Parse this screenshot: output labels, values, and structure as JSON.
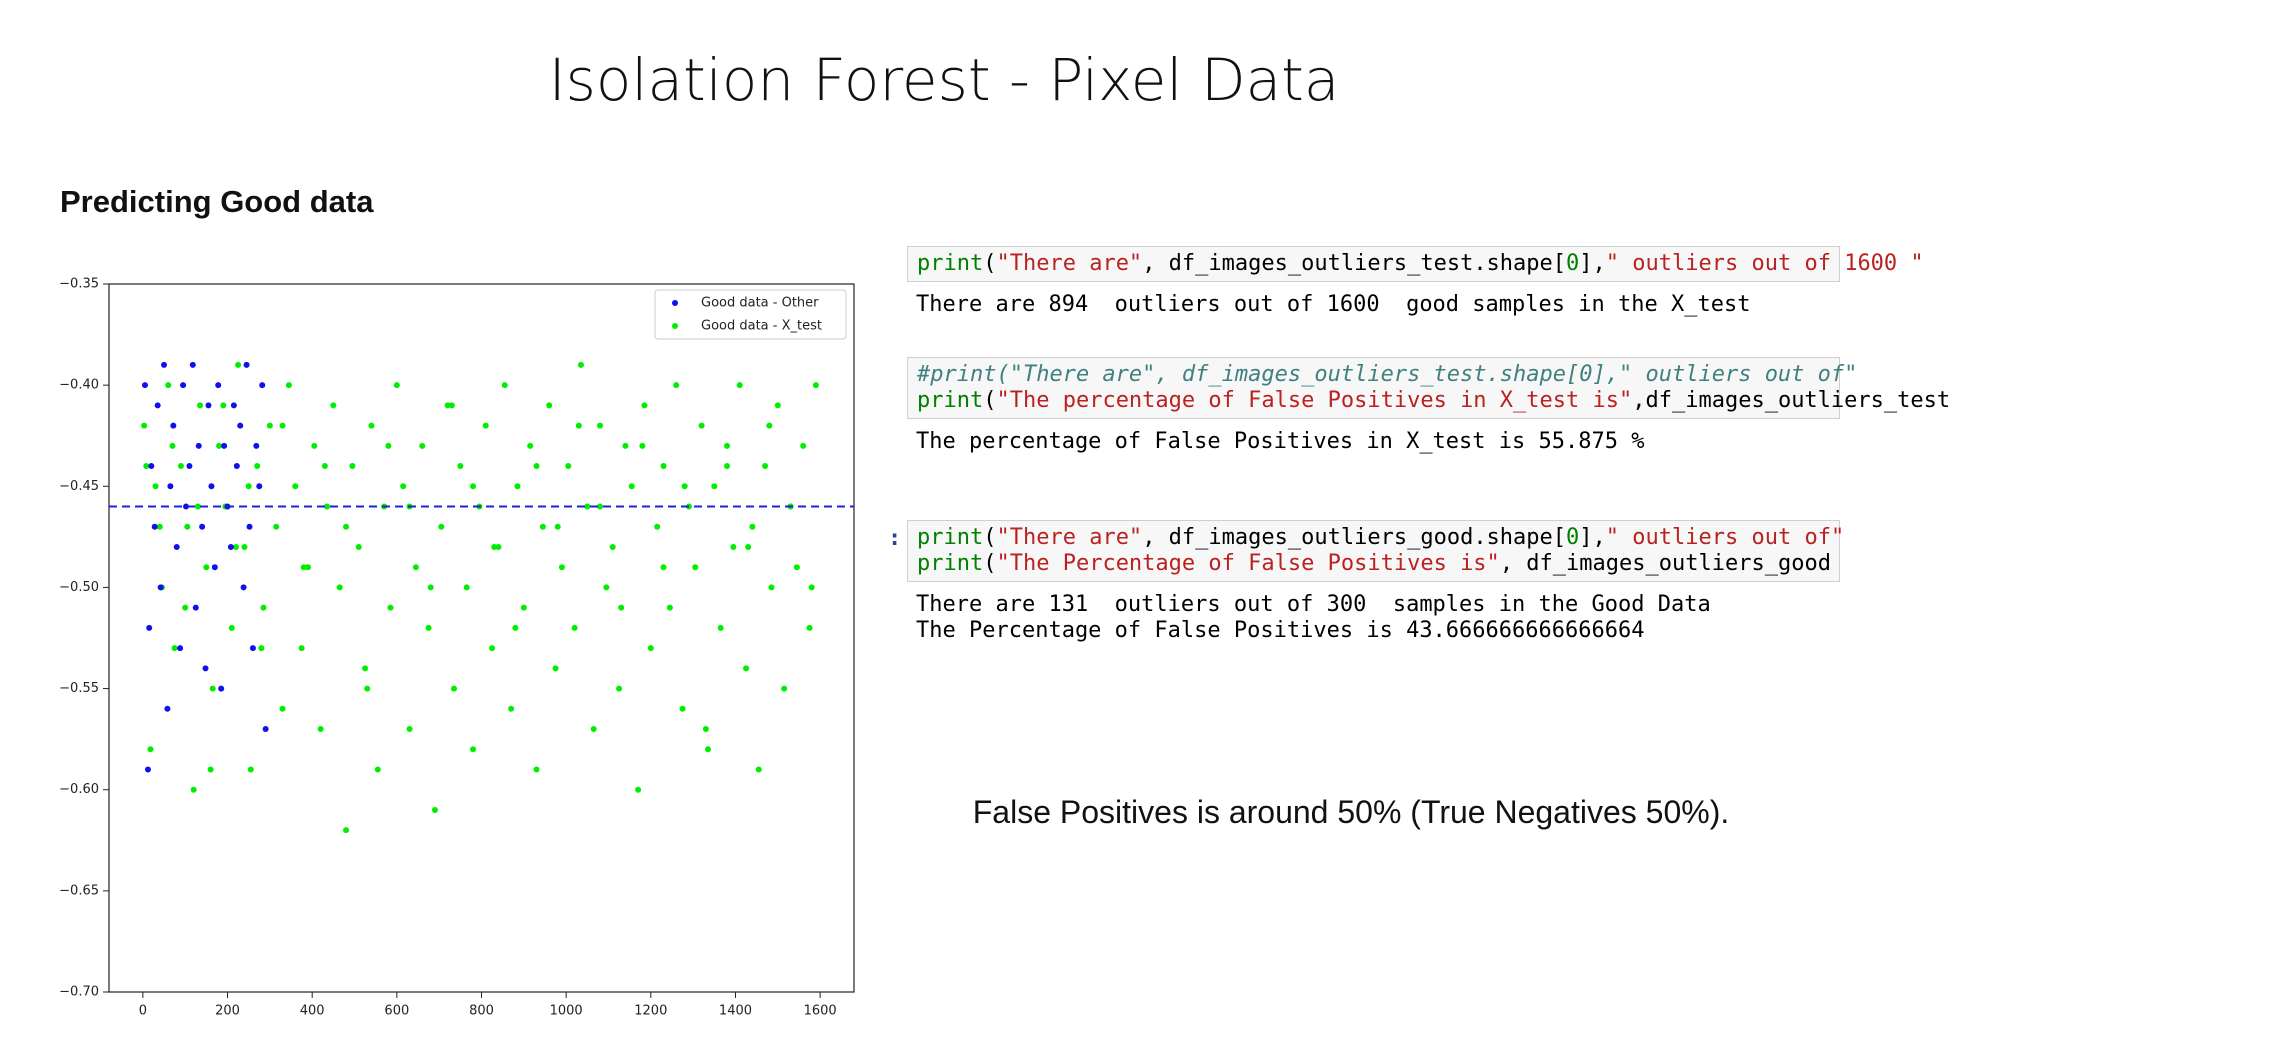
{
  "title": "Isolation Forest - Pixel Data",
  "subtitle": "Predicting Good data",
  "chart_data": {
    "type": "scatter",
    "xlim": [
      -80,
      1680
    ],
    "ylim": [
      -0.7,
      -0.35
    ],
    "xticks": [
      0,
      200,
      400,
      600,
      800,
      1000,
      1200,
      1400,
      1600
    ],
    "yticks": [
      {
        "value": -0.7,
        "label": "−0.70"
      },
      {
        "value": -0.65,
        "label": "−0.65"
      },
      {
        "value": -0.6,
        "label": "−0.60"
      },
      {
        "value": -0.55,
        "label": "−0.55"
      },
      {
        "value": -0.5,
        "label": "−0.50"
      },
      {
        "value": -0.45,
        "label": "−0.45"
      },
      {
        "value": -0.4,
        "label": "−0.40"
      },
      {
        "value": -0.35,
        "label": "−0.35"
      }
    ],
    "hline": -0.46,
    "hline_color": "#1f1fdd",
    "legend": "upper right",
    "series": [
      {
        "name": "Good data - X_test",
        "color": "#00ee00",
        "x": [
          3,
          18,
          30,
          45,
          60,
          75,
          90,
          105,
          120,
          135,
          150,
          165,
          180,
          195,
          210,
          225,
          240,
          255,
          270,
          285,
          300,
          315,
          330,
          345,
          360,
          375,
          390,
          405,
          420,
          435,
          450,
          465,
          480,
          495,
          510,
          525,
          540,
          555,
          570,
          585,
          600,
          615,
          630,
          645,
          660,
          675,
          690,
          705,
          720,
          735,
          750,
          765,
          780,
          795,
          810,
          825,
          840,
          855,
          870,
          885,
          900,
          915,
          930,
          945,
          960,
          975,
          990,
          1005,
          1020,
          1035,
          1050,
          1065,
          1080,
          1095,
          1110,
          1125,
          1140,
          1155,
          1170,
          1185,
          1200,
          1215,
          1230,
          1245,
          1260,
          1275,
          1290,
          1305,
          1320,
          1335,
          1350,
          1365,
          1380,
          1395,
          1410,
          1425,
          1440,
          1455,
          1470,
          1485,
          1500,
          1515,
          1530,
          1545,
          1560,
          1575,
          1590,
          8,
          40,
          70,
          100,
          130,
          160,
          190,
          220,
          250,
          280,
          330,
          380,
          430,
          480,
          530,
          580,
          630,
          680,
          730,
          780,
          830,
          880,
          930,
          980,
          1030,
          1080,
          1130,
          1180,
          1230,
          1280,
          1330,
          1380,
          1430,
          1480,
          1530,
          1580
        ],
        "y": [
          -0.42,
          -0.58,
          -0.45,
          -0.5,
          -0.4,
          -0.53,
          -0.44,
          -0.47,
          -0.6,
          -0.41,
          -0.49,
          -0.55,
          -0.43,
          -0.46,
          -0.52,
          -0.39,
          -0.48,
          -0.59,
          -0.44,
          -0.51,
          -0.42,
          -0.47,
          -0.56,
          -0.4,
          -0.45,
          -0.53,
          -0.49,
          -0.43,
          -0.57,
          -0.46,
          -0.41,
          -0.5,
          -0.62,
          -0.44,
          -0.48,
          -0.54,
          -0.42,
          -0.59,
          -0.46,
          -0.51,
          -0.4,
          -0.45,
          -0.57,
          -0.49,
          -0.43,
          -0.52,
          -0.61,
          -0.47,
          -0.41,
          -0.55,
          -0.44,
          -0.5,
          -0.58,
          -0.46,
          -0.42,
          -0.53,
          -0.48,
          -0.4,
          -0.56,
          -0.45,
          -0.51,
          -0.43,
          -0.59,
          -0.47,
          -0.41,
          -0.54,
          -0.49,
          -0.44,
          -0.52,
          -0.39,
          -0.46,
          -0.57,
          -0.42,
          -0.5,
          -0.48,
          -0.55,
          -0.43,
          -0.45,
          -0.6,
          -0.41,
          -0.53,
          -0.47,
          -0.44,
          -0.51,
          -0.4,
          -0.56,
          -0.46,
          -0.49,
          -0.42,
          -0.58,
          -0.45,
          -0.52,
          -0.43,
          -0.48,
          -0.4,
          -0.54,
          -0.47,
          -0.59,
          -0.44,
          -0.5,
          -0.41,
          -0.55,
          -0.46,
          -0.49,
          -0.43,
          -0.52,
          -0.4,
          -0.44,
          -0.47,
          -0.43,
          -0.51,
          -0.46,
          -0.59,
          -0.41,
          -0.48,
          -0.45,
          -0.53,
          -0.42,
          -0.49,
          -0.44,
          -0.47,
          -0.55,
          -0.43,
          -0.46,
          -0.5,
          -0.41,
          -0.45,
          -0.48,
          -0.52,
          -0.44,
          -0.47,
          -0.42,
          -0.46,
          -0.51,
          -0.43,
          -0.49,
          -0.45,
          -0.57,
          -0.44,
          -0.48,
          -0.42,
          -0.46,
          -0.5
        ]
      },
      {
        "name": "Good data - Other",
        "color": "#1010ee",
        "x": [
          5,
          12,
          20,
          28,
          35,
          42,
          50,
          58,
          65,
          72,
          80,
          88,
          95,
          102,
          110,
          118,
          125,
          132,
          140,
          148,
          155,
          162,
          170,
          178,
          185,
          192,
          200,
          208,
          215,
          222,
          230,
          238,
          245,
          252,
          260,
          268,
          275,
          282,
          290,
          15
        ],
        "y": [
          -0.4,
          -0.59,
          -0.44,
          -0.47,
          -0.41,
          -0.5,
          -0.39,
          -0.56,
          -0.45,
          -0.42,
          -0.48,
          -0.53,
          -0.4,
          -0.46,
          -0.44,
          -0.39,
          -0.51,
          -0.43,
          -0.47,
          -0.54,
          -0.41,
          -0.45,
          -0.49,
          -0.4,
          -0.55,
          -0.43,
          -0.46,
          -0.48,
          -0.41,
          -0.44,
          -0.42,
          -0.5,
          -0.39,
          -0.47,
          -0.53,
          -0.43,
          -0.45,
          -0.4,
          -0.57,
          -0.52
        ]
      }
    ]
  },
  "cells": [
    {
      "prompt": null,
      "input": [
        [
          {
            "text": "print",
            "color": "#008000"
          },
          {
            "text": "(",
            "color": "#000000"
          },
          {
            "text": "\"There are\"",
            "color": "#ba2121"
          },
          {
            "text": ", df_images_outliers_test.shape[",
            "color": "#000000"
          },
          {
            "text": "0",
            "color": "#008000"
          },
          {
            "text": "],",
            "color": "#000000"
          },
          {
            "text": "\" outliers out of 1600 \"",
            "color": "#ba2121"
          }
        ]
      ],
      "output": [
        "There are 894  outliers out of 1600  good samples in the X_test"
      ]
    },
    {
      "prompt": null,
      "input": [
        [
          {
            "text": "#print(\"There are\", df_images_outliers_test.shape[0],\" outliers out of\"",
            "color": "#408080",
            "style": "italic"
          }
        ],
        [
          {
            "text": "print",
            "color": "#008000"
          },
          {
            "text": "(",
            "color": "#000000"
          },
          {
            "text": "\"The percentage of False Positives in X_test is\"",
            "color": "#ba2121"
          },
          {
            "text": ",df_images_outliers_test",
            "color": "#000000"
          }
        ]
      ],
      "output": [
        "The percentage of False Positives in X_test is 55.875 %"
      ]
    },
    {
      "prompt": ":",
      "input": [
        [
          {
            "text": "print",
            "color": "#008000"
          },
          {
            "text": "(",
            "color": "#000000"
          },
          {
            "text": "\"There are\"",
            "color": "#ba2121"
          },
          {
            "text": ", df_images_outliers_good.shape[",
            "color": "#000000"
          },
          {
            "text": "0",
            "color": "#008000"
          },
          {
            "text": "],",
            "color": "#000000"
          },
          {
            "text": "\" outliers out of\"",
            "color": "#ba2121"
          }
        ],
        [
          {
            "text": "print",
            "color": "#008000"
          },
          {
            "text": "(",
            "color": "#000000"
          },
          {
            "text": "\"The Percentage of False Positives is\"",
            "color": "#ba2121"
          },
          {
            "text": ", df_images_outliers_good",
            "color": "#000000"
          }
        ]
      ],
      "output": [
        "There are 131  outliers out of 300  samples in the Good Data",
        "The Percentage of False Positives is 43.666666666666664"
      ]
    }
  ],
  "note": "False Positives is around 50% (True Negatives 50%)."
}
